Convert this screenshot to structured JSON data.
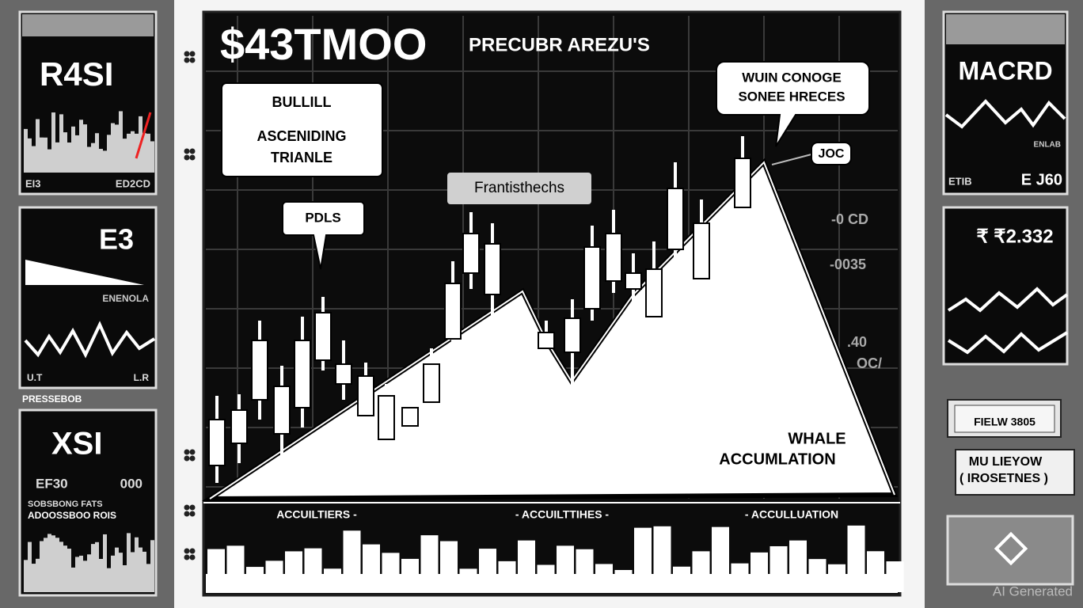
{
  "left_panels": [
    {
      "title": "R4SI",
      "footer_left": "EI3",
      "footer_right": "ED2CD"
    },
    {
      "title": "E3",
      "note": "ENENOLA",
      "footer_left": "U.T",
      "footer_right": "L.R"
    },
    {
      "caption": "PRESSEBOB",
      "title": "XSI",
      "left_value": "EF30",
      "right_value": "000",
      "line1": "SOBSBONG FATS",
      "line2": "ADOOSSBOO ROIS"
    }
  ],
  "main": {
    "title": "$43TMOO",
    "subtitle": "PRECUBR AREZU'S",
    "pattern_box": {
      "line1": "BULLILL",
      "line2": "ASCENIDING",
      "line3": "TRIANLE"
    },
    "callout_left": "PDLS",
    "callout_mid": "Frantisthechs",
    "callout_top": {
      "line1": "WUIN CONOGE",
      "line2": "SONEE HRECES"
    },
    "price_tag": "JOC",
    "axis_labels": [
      "-0 CD",
      "-0035",
      ".40",
      "OC/"
    ],
    "area_label": {
      "line1": "WHALE",
      "line2": "ACCUMLATION"
    },
    "volume_labels": [
      "ACCUILTIERS -",
      "- ACCUILTTIHES -",
      "- ACCULLUATION"
    ]
  },
  "right_panels": [
    {
      "title": "MACRD",
      "note": "ENLAB",
      "footer_left": "ETIB",
      "footer_right": "E J60"
    },
    {
      "title": "₹ ₹2.332"
    },
    {
      "label": "FIELW 3805"
    },
    {
      "line1": "MU LIEYOW",
      "line2": "( IROSETNES )"
    }
  ],
  "watermark": "AI Generated"
}
